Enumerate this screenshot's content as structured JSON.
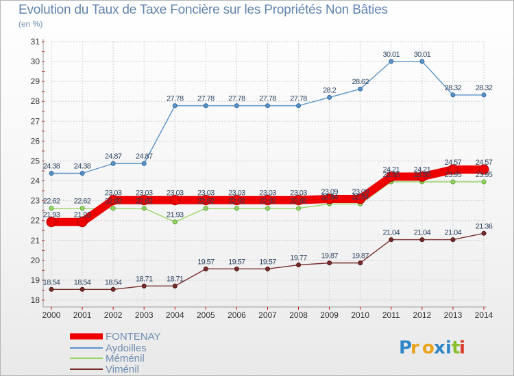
{
  "chart_data": {
    "type": "line",
    "title": "Evolution du Taux de Taxe Foncière sur les Propriétés Non Bâties",
    "unit_label": "(en %)",
    "xlabel": "",
    "ylabel": "",
    "x": [
      "2000",
      "2001",
      "2002",
      "2003",
      "2004",
      "2005",
      "2006",
      "2007",
      "2008",
      "2009",
      "2010",
      "2011",
      "2012",
      "2013",
      "2014"
    ],
    "ylim": [
      18,
      31
    ],
    "yticks": [
      "18",
      "19",
      "20",
      "21",
      "22",
      "23",
      "24",
      "25",
      "26",
      "27",
      "28",
      "29",
      "30",
      "31"
    ],
    "grid": true,
    "legend_position": "bottom-left",
    "series": [
      {
        "name": "FONTENAY",
        "color": "#ee0000",
        "values": [
          21.93,
          21.93,
          23.03,
          23.03,
          23.03,
          23.03,
          23.03,
          23.03,
          23.03,
          23.09,
          23.09,
          24.21,
          24.21,
          24.57,
          24.57
        ],
        "labels": [
          "21.93",
          "21.93",
          "23.03",
          "23.03",
          "23.03",
          "23.03",
          "23.03",
          "23.03",
          "23.03",
          "23.09",
          "23.09",
          "24.21",
          "24.21",
          "24.57",
          "24.57"
        ]
      },
      {
        "name": "Aydoilles",
        "color": "#5b93c7",
        "values": [
          24.38,
          24.38,
          24.87,
          24.87,
          27.78,
          27.78,
          27.78,
          27.78,
          27.78,
          28.2,
          28.62,
          30.01,
          30.01,
          28.32,
          28.32
        ],
        "labels": [
          "24.38",
          "24.38",
          "24.87",
          "24.87",
          "27.78",
          "27.78",
          "27.78",
          "27.78",
          "27.78",
          "28.2",
          "28.62",
          "30.01",
          "30.01",
          "28.32",
          "28.32"
        ]
      },
      {
        "name": "Méménil",
        "color": "#99d466",
        "values": [
          22.62,
          22.62,
          22.62,
          22.62,
          21.93,
          22.62,
          22.62,
          22.62,
          22.62,
          22.84,
          22.84,
          23.95,
          23.95,
          23.95,
          23.95
        ],
        "labels": [
          "22.62",
          "22.62",
          "22.62",
          "22.62",
          "21.93",
          "22.62",
          "22.62",
          "22.62",
          "22.62",
          "22.84",
          "22.84",
          "23.95",
          "23.95",
          "23.95",
          "23.95"
        ]
      },
      {
        "name": "Viménil",
        "color": "#7a2d2d",
        "values": [
          18.54,
          18.54,
          18.54,
          18.71,
          18.71,
          19.57,
          19.57,
          19.57,
          19.77,
          19.87,
          19.87,
          21.04,
          21.04,
          21.04,
          21.36
        ],
        "labels": [
          "18.54",
          "18.54",
          "18.54",
          "18.71",
          "18.71",
          "19.57",
          "19.57",
          "19.57",
          "19.77",
          "19.87",
          "19.87",
          "21.04",
          "21.04",
          "21.04",
          "21.36"
        ]
      }
    ],
    "logo_text": "Proxiti"
  }
}
